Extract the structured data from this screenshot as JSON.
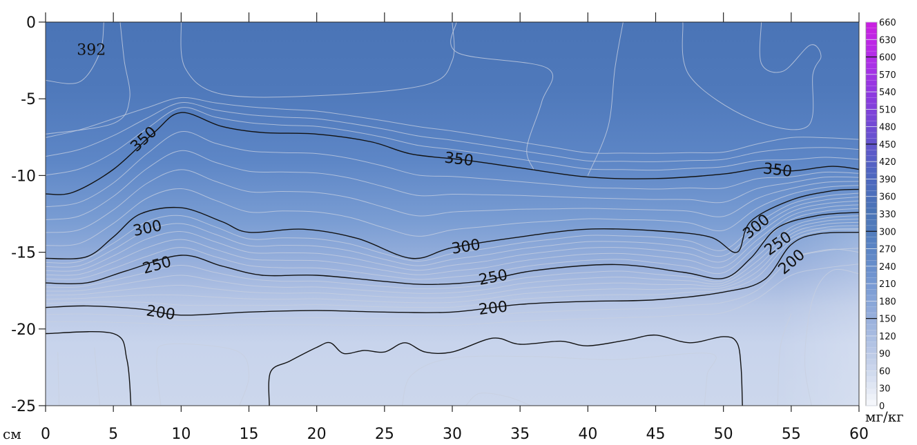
{
  "chart_data": {
    "type": "heatmap",
    "subtype": "filled-contour",
    "title": "",
    "xlabel": "см",
    "ylabel": "",
    "colorbar_label": "мг/кг",
    "xlim": [
      0,
      60
    ],
    "ylim": [
      -25,
      0
    ],
    "x_ticks": [
      0,
      5,
      10,
      15,
      20,
      25,
      30,
      35,
      40,
      45,
      50,
      55,
      60
    ],
    "y_ticks": [
      0,
      -5,
      -10,
      -15,
      -20,
      -25
    ],
    "colorbar_ticks": [
      0,
      30,
      60,
      90,
      120,
      150,
      180,
      210,
      240,
      270,
      300,
      330,
      360,
      390,
      420,
      450,
      480,
      510,
      540,
      570,
      600,
      630,
      660
    ],
    "colorbar_range": [
      0,
      660
    ],
    "colorbar_colors": [
      "#f4f6fb",
      "#c6d2ea",
      "#9fb5de",
      "#7b9cd4",
      "#5a84c4",
      "#4a74b6",
      "#4e66c0",
      "#6a4fd0",
      "#8c3adf",
      "#b22ee8",
      "#cc1fe0"
    ],
    "peak_annotation": {
      "text": "392",
      "x": 2,
      "y": -1.5
    },
    "labeled_contours": [
      {
        "level": 350,
        "label": "350",
        "points": [
          [
            0,
            -11.2
          ],
          [
            2,
            -11.1
          ],
          [
            5,
            -9.6
          ],
          [
            8,
            -7.2
          ],
          [
            10,
            -5.9
          ],
          [
            13,
            -6.8
          ],
          [
            16,
            -7.2
          ],
          [
            20,
            -7.3
          ],
          [
            24,
            -7.8
          ],
          [
            27,
            -8.6
          ],
          [
            31,
            -9.0
          ],
          [
            35,
            -9.5
          ],
          [
            40,
            -10.1
          ],
          [
            45,
            -10.2
          ],
          [
            50,
            -9.9
          ],
          [
            53,
            -9.5
          ],
          [
            55,
            -9.7
          ],
          [
            58,
            -9.4
          ],
          [
            60,
            -9.6
          ]
        ],
        "label_positions": [
          [
            7.2,
            -7.6
          ],
          [
            30.5,
            -8.9
          ],
          [
            54,
            -9.6
          ]
        ]
      },
      {
        "level": 300,
        "label": "300",
        "points": [
          [
            0,
            -15.4
          ],
          [
            3,
            -15.3
          ],
          [
            5,
            -14.0
          ],
          [
            7,
            -12.5
          ],
          [
            10,
            -12.1
          ],
          [
            13,
            -13.0
          ],
          [
            15,
            -13.7
          ],
          [
            19,
            -13.5
          ],
          [
            23,
            -14.1
          ],
          [
            27,
            -15.4
          ],
          [
            30,
            -14.7
          ],
          [
            35,
            -14.0
          ],
          [
            40,
            -13.5
          ],
          [
            45,
            -13.6
          ],
          [
            49,
            -14.0
          ],
          [
            51,
            -15.0
          ],
          [
            52,
            -13.0
          ],
          [
            55,
            -11.6
          ],
          [
            58,
            -11.0
          ],
          [
            60,
            -10.9
          ]
        ],
        "label_positions": [
          [
            7.5,
            -13.4
          ],
          [
            31,
            -14.6
          ],
          [
            52.4,
            -13.3
          ]
        ]
      },
      {
        "level": 250,
        "label": "250",
        "points": [
          [
            0,
            -17.0
          ],
          [
            3,
            -17.0
          ],
          [
            6,
            -16.2
          ],
          [
            10,
            -15.2
          ],
          [
            13,
            -15.9
          ],
          [
            16,
            -16.5
          ],
          [
            20,
            -16.5
          ],
          [
            25,
            -16.9
          ],
          [
            28,
            -17.1
          ],
          [
            32,
            -16.9
          ],
          [
            36,
            -16.2
          ],
          [
            42,
            -15.8
          ],
          [
            47,
            -16.3
          ],
          [
            50,
            -16.7
          ],
          [
            52,
            -15.4
          ],
          [
            54,
            -13.4
          ],
          [
            57,
            -12.6
          ],
          [
            60,
            -12.4
          ]
        ],
        "label_positions": [
          [
            8.2,
            -15.8
          ],
          [
            33,
            -16.6
          ],
          [
            54,
            -14.4
          ]
        ]
      },
      {
        "level": 200,
        "label": "200",
        "points": [
          [
            0,
            -18.6
          ],
          [
            3,
            -18.5
          ],
          [
            7,
            -18.7
          ],
          [
            10,
            -19.1
          ],
          [
            15,
            -18.9
          ],
          [
            20,
            -18.8
          ],
          [
            25,
            -18.9
          ],
          [
            30,
            -18.9
          ],
          [
            35,
            -18.4
          ],
          [
            40,
            -18.2
          ],
          [
            45,
            -18.1
          ],
          [
            50,
            -17.6
          ],
          [
            53,
            -16.8
          ],
          [
            55,
            -14.5
          ],
          [
            57,
            -13.8
          ],
          [
            60,
            -13.7
          ]
        ],
        "label_positions": [
          [
            8.5,
            -18.9
          ],
          [
            33,
            -18.6
          ],
          [
            55,
            -15.6
          ]
        ]
      }
    ],
    "unlabeled_black_contours": [
      {
        "level": 150,
        "points": [
          [
            0,
            -20.3
          ],
          [
            5,
            -20.3
          ],
          [
            6,
            -22.0
          ],
          [
            6.3,
            -25
          ]
        ]
      },
      {
        "level": 150,
        "points": [
          [
            16.5,
            -25
          ],
          [
            16.6,
            -22.8
          ],
          [
            18,
            -22.1
          ],
          [
            20,
            -21.2
          ],
          [
            21,
            -20.9
          ],
          [
            22,
            -21.6
          ],
          [
            23.5,
            -21.4
          ],
          [
            25,
            -21.5
          ],
          [
            26.5,
            -20.9
          ],
          [
            28,
            -21.5
          ],
          [
            30,
            -21.5
          ],
          [
            33,
            -20.6
          ],
          [
            35,
            -21.0
          ],
          [
            38,
            -20.8
          ],
          [
            40,
            -21.1
          ],
          [
            43,
            -20.7
          ],
          [
            45,
            -20.4
          ],
          [
            47.5,
            -20.9
          ],
          [
            50,
            -20.5
          ],
          [
            51,
            -20.9
          ],
          [
            51.3,
            -22.5
          ],
          [
            51.4,
            -25
          ]
        ]
      }
    ]
  }
}
